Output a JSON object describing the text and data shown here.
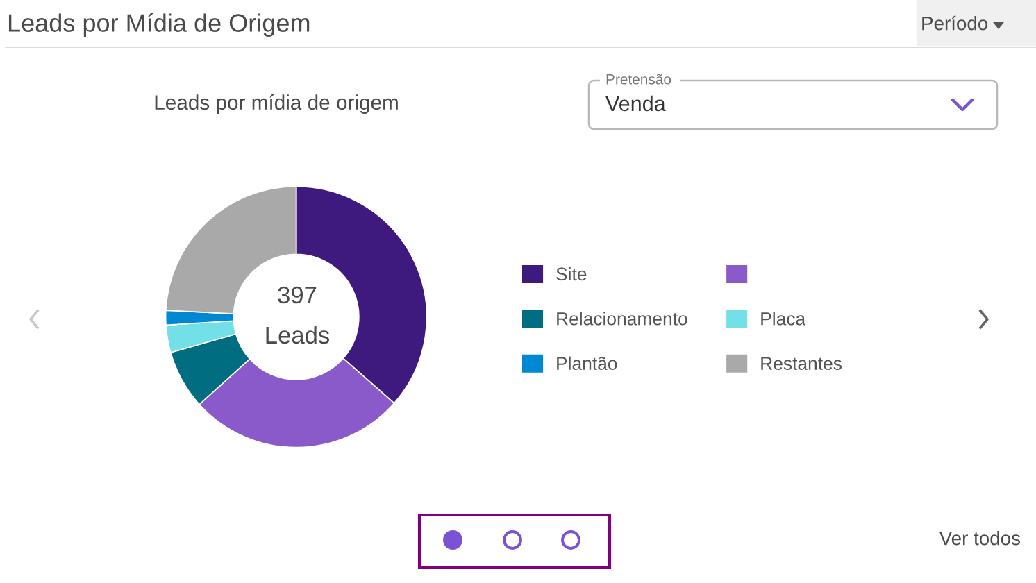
{
  "chart_data": {
    "type": "donut",
    "title": "Leads por Mídia de Origem",
    "subtitle": "Leads por mídia de origem",
    "categories": [
      "Site",
      null,
      "Relacionamento",
      "Placa",
      "Plantão",
      "Restantes"
    ],
    "values": [
      36.5,
      26.8,
      7.3,
      3.4,
      1.8,
      24.2
    ],
    "colors": [
      "#3f1a7e",
      "#8a5acb",
      "#006e80",
      "#73dfe7",
      "#0088d2",
      "#a9a9a9"
    ],
    "legend": "right",
    "annotations": [
      "Período",
      "Pretensão",
      "Venda",
      "397",
      "Leads",
      "Ver todos"
    ]
  }
}
